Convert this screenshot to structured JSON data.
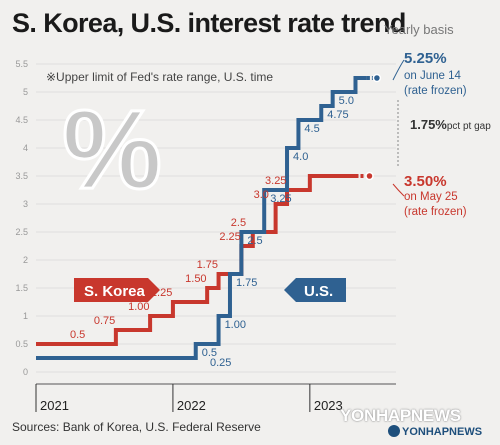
{
  "title": "S. Korea, U.S. interest rate trend",
  "subtitle": "Yearly basis",
  "footnote": "※Upper limit of Fed's rate range, U.S. time",
  "source": "Sources: Bank of Korea, U.S. Federal Reserve",
  "logo": {
    "big": "YONHAPNEWS",
    "small": "YONHAPNEWS"
  },
  "colors": {
    "us": "#2f6191",
    "korea": "#c8372d",
    "percent": "#c8c8c8"
  },
  "icon": "percent-icon",
  "callouts": {
    "us_value": "5.25%",
    "us_date": "on June 14",
    "us_note": "(rate frozen)",
    "gap_value": "1.75%",
    "gap_unit": "pct pt gap",
    "korea_value": "3.50%",
    "korea_date": "on May 25",
    "korea_note": "(rate frozen)"
  },
  "badges": {
    "korea": "S. Korea",
    "us": "U.S."
  },
  "chart_data": {
    "type": "line",
    "line_shape": "step",
    "x_ticks": [
      "2021",
      "2022",
      "2023"
    ],
    "ylim": [
      0,
      5.5
    ],
    "y_ticks": [
      "0",
      "0.5",
      "1",
      "1.5",
      "2",
      "2.5",
      "3",
      "3.5",
      "4",
      "4.5",
      "5",
      "5.5"
    ],
    "grid": true,
    "series": [
      {
        "name": "S. Korea",
        "points": [
          {
            "x": "2021-01",
            "y": 0.5
          },
          {
            "x": "2021-08",
            "y": 0.75,
            "label": "0.75"
          },
          {
            "x": "2021-11",
            "y": 1.0,
            "label": "1.00"
          },
          {
            "x": "2022-01",
            "y": 1.25,
            "label": "1.25"
          },
          {
            "x": "2022-04",
            "y": 1.5,
            "label": "1.50"
          },
          {
            "x": "2022-05",
            "y": 1.75,
            "label": "1.75"
          },
          {
            "x": "2022-07",
            "y": 2.25,
            "label": "2.25"
          },
          {
            "x": "2022-08",
            "y": 2.5,
            "label": "2.5"
          },
          {
            "x": "2022-10",
            "y": 3.0,
            "label": "3.0"
          },
          {
            "x": "2022-11",
            "y": 3.25,
            "label": "3.25"
          },
          {
            "x": "2023-01",
            "y": 3.5
          },
          {
            "x": "2023-05",
            "y": 3.5
          }
        ],
        "start_label": "0.5"
      },
      {
        "name": "U.S.",
        "points": [
          {
            "x": "2021-01",
            "y": 0.25
          },
          {
            "x": "2022-03",
            "y": 0.5,
            "label": "0.5"
          },
          {
            "x": "2022-05",
            "y": 1.0,
            "label": "1.00"
          },
          {
            "x": "2022-06",
            "y": 1.75,
            "label": "1.75"
          },
          {
            "x": "2022-07",
            "y": 2.5,
            "label": "2.5"
          },
          {
            "x": "2022-09",
            "y": 3.25,
            "label": "3.25"
          },
          {
            "x": "2022-11",
            "y": 4.0,
            "label": "4.0"
          },
          {
            "x": "2022-12",
            "y": 4.5,
            "label": "4.5"
          },
          {
            "x": "2023-02",
            "y": 4.75,
            "label": "4.75"
          },
          {
            "x": "2023-03",
            "y": 5.0,
            "label": "5.0"
          },
          {
            "x": "2023-05",
            "y": 5.25
          },
          {
            "x": "2023-06",
            "y": 5.25
          }
        ],
        "start_label": "0.25"
      }
    ]
  }
}
